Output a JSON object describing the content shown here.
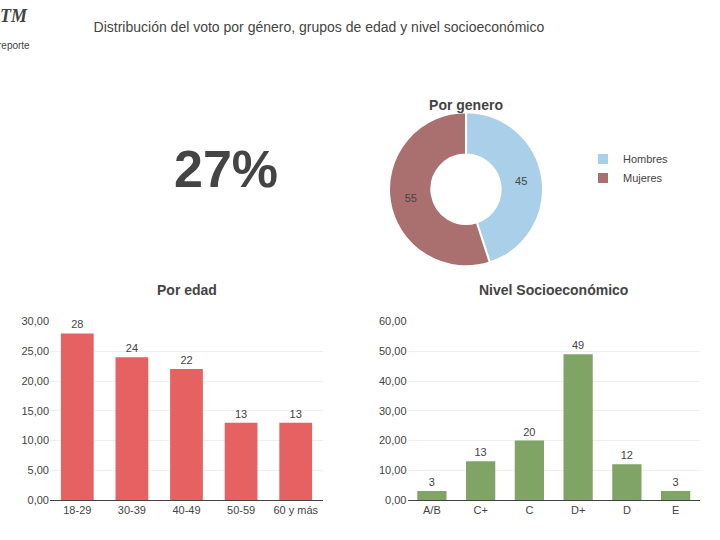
{
  "title": "Distribución del voto por género, grupos de edad y nivel socioeconómico",
  "annotations": [
    "TM",
    "reporte",
    "27%"
  ],
  "chart_data": [
    {
      "type": "pie",
      "title": "Por genero",
      "categories": [
        "Hombres",
        "Mujeres"
      ],
      "values": [
        45,
        55
      ],
      "colors": [
        "#aacfe8",
        "#aa7070"
      ],
      "data_labels": true,
      "legend": "right"
    },
    {
      "type": "bar",
      "title": "Por edad",
      "categories": [
        "18-29",
        "30-39",
        "40-49",
        "50-59",
        "60 y más"
      ],
      "values": [
        28,
        24,
        22,
        13,
        13
      ],
      "color": "#e66161",
      "ylim": [
        0,
        30
      ],
      "yticks": [
        {
          "value": 0,
          "label": "0,00"
        },
        {
          "value": 5,
          "label": "5,00"
        },
        {
          "value": 10,
          "label": "10,00"
        },
        {
          "value": 15,
          "label": "15,00"
        },
        {
          "value": 20,
          "label": "20,00"
        },
        {
          "value": 25,
          "label": "25,00"
        },
        {
          "value": 30,
          "label": "30,00"
        }
      ],
      "grid": true,
      "data_labels": true
    },
    {
      "type": "bar",
      "title": "Nivel Socioeconómico",
      "categories": [
        "A/B",
        "C+",
        "C",
        "D+",
        "D",
        "E"
      ],
      "values": [
        3,
        13,
        20,
        49,
        12,
        3
      ],
      "color": "#80a366",
      "ylim": [
        0,
        60
      ],
      "yticks": [
        {
          "value": 0,
          "label": "0,00"
        },
        {
          "value": 10,
          "label": "10,00"
        },
        {
          "value": 20,
          "label": "20,00"
        },
        {
          "value": 30,
          "label": "30,00"
        },
        {
          "value": 40,
          "label": "40,00"
        },
        {
          "value": 50,
          "label": "50,00"
        },
        {
          "value": 60,
          "label": "60,00"
        }
      ],
      "grid": true,
      "data_labels": true
    }
  ]
}
